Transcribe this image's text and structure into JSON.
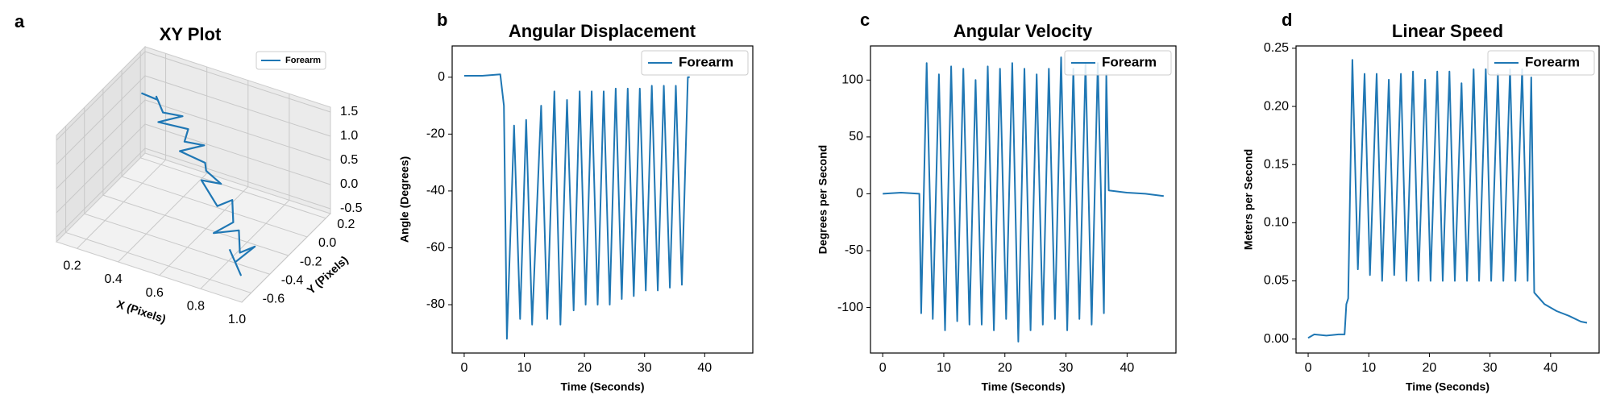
{
  "chart_data": [
    {
      "type": "line3d",
      "panel_label": "a",
      "title": "XY Plot",
      "xlabel": "X (Pixels)",
      "ylabel": "Y (Pixels)",
      "xlim": [
        0.1,
        1.0
      ],
      "ylim": [
        -0.7,
        0.25
      ],
      "zlim": [
        -0.6,
        1.6
      ],
      "xticks": [
        0.2,
        0.4,
        0.6,
        0.8,
        {
          "value": 1,
          "label": "1.0"
        }
      ],
      "yticks": [
        -0.6,
        -0.4,
        -0.2,
        {
          "value": 0,
          "label": "0.0"
        },
        0.2
      ],
      "zticks": [
        -0.5,
        {
          "value": 0,
          "label": "0.0"
        },
        0.5,
        {
          "value": 1,
          "label": "1.0"
        },
        1.5
      ],
      "grid": true,
      "legend": "upper right",
      "series": [
        {
          "name": "Forearm",
          "color": "#1f77b4",
          "x": [
            0.15,
            0.25,
            0.2,
            0.3,
            0.35,
            0.3,
            0.4,
            0.45,
            0.5,
            0.45,
            0.55,
            0.6,
            0.65,
            0.6,
            0.7,
            0.75,
            0.8,
            0.75,
            0.85,
            0.9,
            0.95,
            0.9,
            0.95,
            0.85
          ],
          "y": [
            0.1,
            0.05,
            0.15,
            0.0,
            0.1,
            -0.05,
            0.05,
            -0.1,
            0.0,
            -0.15,
            -0.1,
            -0.2,
            -0.15,
            -0.25,
            -0.3,
            -0.25,
            -0.35,
            -0.45,
            -0.4,
            -0.5,
            -0.45,
            -0.55,
            -0.6,
            -0.5
          ],
          "z": [
            1.0,
            1.1,
            0.9,
            1.0,
            0.8,
            0.9,
            0.7,
            0.8,
            0.6,
            0.7,
            0.5,
            0.6,
            0.3,
            0.5,
            0.2,
            0.3,
            0.1,
            0.0,
            0.1,
            -0.1,
            0.0,
            -0.2,
            -0.3,
            -0.1
          ]
        }
      ]
    },
    {
      "type": "line",
      "panel_label": "b",
      "title": "Angular Displacement",
      "xlabel": "Time (Seconds)",
      "ylabel": "Angle (Degrees)",
      "xlim": [
        -2,
        48
      ],
      "ylim": [
        -97,
        11
      ],
      "xticks": [
        0,
        10,
        20,
        30,
        40
      ],
      "yticks": [
        -80,
        -60,
        -40,
        -20,
        0
      ],
      "grid": false,
      "legend": "upper right",
      "x": [
        0,
        3,
        6,
        6.6,
        7.1,
        8.3,
        9.3,
        10.3,
        11.3,
        12.8,
        13.8,
        15.0,
        16.0,
        17.1,
        18.2,
        19.2,
        20.2,
        21.2,
        22.2,
        23.2,
        24.2,
        25.2,
        26.2,
        27.2,
        28.2,
        29.2,
        30.2,
        31.2,
        32.2,
        33.2,
        34.2,
        35.2,
        36.2,
        37.2,
        37.5
      ],
      "series": [
        {
          "name": "Forearm",
          "color": "#1f77b4",
          "values": [
            0.5,
            0.5,
            1,
            -10,
            -92,
            -17,
            -85,
            -15,
            -87,
            -10,
            -85,
            -5,
            -87,
            -8,
            -82,
            -5,
            -80,
            -5,
            -80,
            -5,
            -80,
            -4,
            -78,
            -4,
            -77,
            -4,
            -75,
            -3,
            -75,
            -3,
            -74,
            -3,
            -73,
            0,
            0
          ]
        }
      ]
    },
    {
      "type": "line",
      "panel_label": "c",
      "title": "Angular Velocity",
      "xlabel": "Time (Seconds)",
      "ylabel": "Degrees per Second",
      "xlim": [
        -2,
        48
      ],
      "ylim": [
        -140,
        130
      ],
      "xticks": [
        0,
        10,
        20,
        30,
        40
      ],
      "yticks": [
        -100,
        -50,
        0,
        50,
        100
      ],
      "grid": false,
      "legend": "upper right",
      "x": [
        0,
        3,
        6,
        6.3,
        7.2,
        8.2,
        9.2,
        10.2,
        11.2,
        12.2,
        13.2,
        14.2,
        15.2,
        16.2,
        17.2,
        18.2,
        19.2,
        20.2,
        21.2,
        22.2,
        23.2,
        24.2,
        25.2,
        26.2,
        27.2,
        28.2,
        29.2,
        30.2,
        31.2,
        32.2,
        33.2,
        34.2,
        35.2,
        36.2,
        36.6,
        37,
        40,
        43,
        46
      ],
      "series": [
        {
          "name": "Forearm",
          "color": "#1f77b4",
          "values": [
            0,
            1,
            0,
            -105,
            115,
            -110,
            105,
            -120,
            112,
            -112,
            110,
            -115,
            100,
            -115,
            112,
            -120,
            110,
            -110,
            115,
            -130,
            110,
            -120,
            105,
            -115,
            110,
            -110,
            120,
            -120,
            110,
            -110,
            115,
            -115,
            115,
            -105,
            105,
            3,
            1,
            0,
            -2
          ]
        }
      ]
    },
    {
      "type": "line",
      "panel_label": "d",
      "title": "Linear Speed",
      "xlabel": "Time (Seconds)",
      "ylabel": "Meters per Second",
      "xlim": [
        -2,
        48
      ],
      "ylim": [
        -0.012,
        0.252
      ],
      "xticks": [
        0,
        10,
        20,
        30,
        40
      ],
      "yticks": [
        {
          "value": 0,
          "label": "0.00"
        },
        0.05,
        {
          "value": 0.1,
          "label": "0.10"
        },
        0.15,
        {
          "value": 0.2,
          "label": "0.20"
        },
        0.25
      ],
      "grid": false,
      "legend": "upper right",
      "x": [
        0,
        1,
        3,
        5,
        6,
        6.3,
        6.6,
        7.3,
        8.2,
        9.3,
        10.2,
        11.3,
        12.2,
        13.3,
        14.2,
        15.3,
        16.2,
        17.3,
        18.2,
        19.3,
        20.2,
        21.3,
        22.2,
        23.3,
        24.2,
        25.3,
        26.2,
        27.3,
        28.2,
        29.3,
        30.2,
        31.3,
        32.2,
        33.3,
        34.2,
        35.3,
        36.2,
        36.8,
        37.3,
        39,
        41,
        43,
        45,
        46
      ],
      "series": [
        {
          "name": "Forearm",
          "color": "#1f77b4",
          "values": [
            0.001,
            0.004,
            0.003,
            0.004,
            0.004,
            0.03,
            0.035,
            0.24,
            0.06,
            0.228,
            0.055,
            0.228,
            0.05,
            0.223,
            0.055,
            0.228,
            0.05,
            0.23,
            0.05,
            0.223,
            0.05,
            0.23,
            0.05,
            0.23,
            0.05,
            0.22,
            0.05,
            0.232,
            0.05,
            0.232,
            0.05,
            0.228,
            0.05,
            0.232,
            0.05,
            0.232,
            0.05,
            0.225,
            0.04,
            0.03,
            0.024,
            0.02,
            0.015,
            0.014
          ]
        }
      ]
    }
  ]
}
